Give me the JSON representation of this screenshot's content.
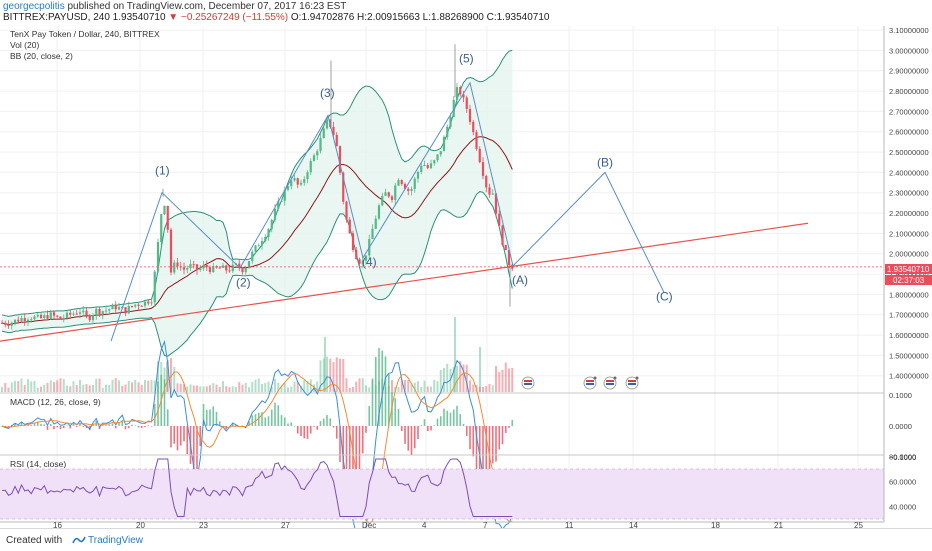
{
  "header": {
    "author": "georgecpolitis",
    "published": "published on TradingView.com, December 07, 2017 16:23 EST",
    "symbol_line": "BITTREX:PAYUSD, 240",
    "last": "1.93540710",
    "change": "▼ −0.25267249 (−11.55%)",
    "ohlc": "O:1.94702876 H:2.00915663 L:1.88268900 C:1.93540710"
  },
  "legend": {
    "title": "TenX Pay Token / Dollar, 240, BITTREX",
    "vol": "Vol (20)",
    "bb": "BB (20, close, 2)"
  },
  "price_label": "1.93540710",
  "countdown": "02:37:03",
  "colors": {
    "up": "#53b987",
    "down": "#eb4d5c",
    "bb_band": "#2f8f7a",
    "bb_basis": "#8b1a1a",
    "bb_fill": "#e3f4ef",
    "trendline": "#e8534d",
    "wave": "#5c8ec7",
    "macd": "#3b8fd9",
    "signal": "#f08c3a",
    "rsi": "#7a4fb5",
    "rsi_band": "#f0e0f8"
  },
  "x_axis_ticks": [
    "16",
    "20",
    "23",
    "27",
    "Dec",
    "4",
    "7",
    "11",
    "14",
    "18",
    "21",
    "25"
  ],
  "macd": {
    "label": "MACD (12, 26, close, 9)",
    "ticks": [
      "0.1000",
      "0.0000",
      "−0.1000"
    ]
  },
  "rsi": {
    "label": "RSI (14, close)",
    "ticks": [
      "80.0000",
      "60.0000",
      "40.0000"
    ]
  },
  "footer": {
    "created": "Created with",
    "brand": "TradingView"
  },
  "chart_data": {
    "type": "candlestick",
    "title": "TenX Pay Token / Dollar, 240, BITTREX",
    "y_range": [
      1.32,
      3.12
    ],
    "y_ticks": [
      1.4,
      1.5,
      1.6,
      1.7,
      1.8,
      1.9,
      2.0,
      2.1,
      2.2,
      2.3,
      2.4,
      2.5,
      2.6,
      2.7,
      2.8,
      2.9,
      3.0,
      3.1
    ],
    "price_path": [
      [
        0,
        1.66
      ],
      [
        10,
        1.66
      ],
      [
        20,
        1.68
      ],
      [
        30,
        1.69
      ],
      [
        40,
        1.68
      ],
      [
        50,
        1.7
      ],
      [
        60,
        1.68
      ],
      [
        70,
        1.7
      ],
      [
        80,
        1.72
      ],
      [
        88,
        1.68
      ],
      [
        95,
        1.72
      ],
      [
        105,
        1.72
      ],
      [
        115,
        1.74
      ],
      [
        125,
        1.72
      ],
      [
        135,
        1.75
      ],
      [
        145,
        1.76
      ],
      [
        152,
        1.78
      ],
      [
        158,
        2.05
      ],
      [
        163,
        2.28
      ],
      [
        167,
        2.2
      ],
      [
        170,
        1.9
      ],
      [
        176,
        1.96
      ],
      [
        183,
        1.92
      ],
      [
        190,
        1.94
      ],
      [
        198,
        1.92
      ],
      [
        205,
        1.94
      ],
      [
        212,
        1.92
      ],
      [
        220,
        1.93
      ],
      [
        228,
        1.92
      ],
      [
        236,
        1.94
      ],
      [
        244,
        1.92
      ],
      [
        252,
        2.0
      ],
      [
        260,
        2.06
      ],
      [
        268,
        2.12
      ],
      [
        276,
        2.22
      ],
      [
        284,
        2.3
      ],
      [
        292,
        2.38
      ],
      [
        300,
        2.32
      ],
      [
        308,
        2.42
      ],
      [
        316,
        2.5
      ],
      [
        322,
        2.58
      ],
      [
        328,
        2.66
      ],
      [
        333,
        2.6
      ],
      [
        338,
        2.5
      ],
      [
        342,
        2.3
      ],
      [
        347,
        2.15
      ],
      [
        352,
        2.05
      ],
      [
        357,
        1.98
      ],
      [
        362,
        1.95
      ],
      [
        368,
        2.03
      ],
      [
        374,
        2.15
      ],
      [
        380,
        2.25
      ],
      [
        386,
        2.3
      ],
      [
        392,
        2.28
      ],
      [
        398,
        2.38
      ],
      [
        404,
        2.34
      ],
      [
        410,
        2.3
      ],
      [
        416,
        2.38
      ],
      [
        422,
        2.45
      ],
      [
        428,
        2.42
      ],
      [
        434,
        2.45
      ],
      [
        440,
        2.5
      ],
      [
        446,
        2.6
      ],
      [
        452,
        2.72
      ],
      [
        458,
        2.82
      ],
      [
        463,
        2.76
      ],
      [
        468,
        2.7
      ],
      [
        473,
        2.6
      ],
      [
        478,
        2.5
      ],
      [
        483,
        2.4
      ],
      [
        488,
        2.3
      ],
      [
        493,
        2.3
      ],
      [
        498,
        2.15
      ],
      [
        503,
        2.05
      ],
      [
        508,
        1.96
      ],
      [
        512,
        1.94
      ],
      [
        515,
        1.935
      ]
    ],
    "last_price": 1.9354071,
    "trendline": [
      [
        0,
        1.57
      ],
      [
        808,
        2.15
      ]
    ],
    "wave_labels": [
      {
        "label": "(1)",
        "x": 163,
        "price": 2.39
      },
      {
        "label": "(2)",
        "x": 244,
        "price": 1.84
      },
      {
        "label": "(3)",
        "x": 328,
        "price": 2.77
      },
      {
        "label": "(4)",
        "x": 370,
        "price": 1.94
      },
      {
        "label": "(5)",
        "x": 467,
        "price": 2.94
      },
      {
        "label": "(A)",
        "x": 520,
        "price": 1.85
      },
      {
        "label": "(B)",
        "x": 605,
        "price": 2.43
      },
      {
        "label": "(C)",
        "x": 664,
        "price": 1.77
      }
    ],
    "wave_path": [
      [
        111,
        1.57
      ],
      [
        162,
        2.3
      ],
      [
        240,
        1.93
      ],
      [
        328,
        2.68
      ],
      [
        363,
        1.98
      ],
      [
        470,
        2.84
      ],
      [
        513,
        1.94
      ],
      [
        605,
        2.4
      ],
      [
        664,
        1.81
      ]
    ]
  }
}
